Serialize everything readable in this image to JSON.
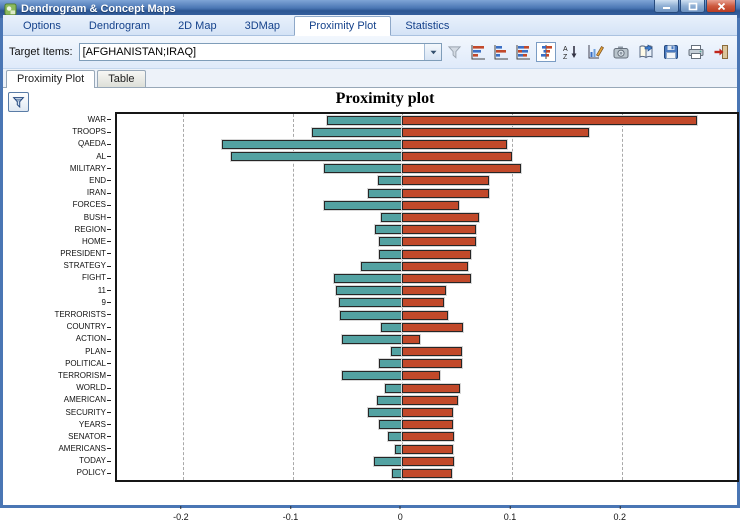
{
  "window": {
    "title": "Dendrogram & Concept Maps"
  },
  "tabs": [
    {
      "label": "Options"
    },
    {
      "label": "Dendrogram"
    },
    {
      "label": "2D Map"
    },
    {
      "label": "3DMap"
    },
    {
      "label": "Proximity Plot",
      "active": true
    },
    {
      "label": "Statistics"
    }
  ],
  "toolbar": {
    "target_items_label": "Target Items:",
    "target_items_value": "[AFGHANISTAN;IRAQ]",
    "left_icons": [
      "filter-funnel",
      "chart-bars-left",
      "chart-bars-sorted",
      "chart-bars-stacked",
      "chart-bars-diverging"
    ],
    "selected_chart_type": "chart-bars-diverging",
    "right_icons": [
      "sort-az",
      "chart-edit",
      "camera",
      "export-book",
      "save",
      "print",
      "exit"
    ]
  },
  "subtabs": [
    {
      "label": "Proximity Plot",
      "active": true
    },
    {
      "label": "Table"
    }
  ],
  "panel": {
    "filter_button_icon": "funnel"
  },
  "theme": {
    "titlebar_blue": "#3a66a4",
    "tab_text_blue": "#15428b",
    "negative_bar": "#53a2a2",
    "positive_bar": "#c2492a"
  },
  "chart_data": {
    "type": "bar",
    "orientation": "horizontal",
    "diverging": true,
    "title": "Proximity plot",
    "xlabel": "",
    "ylabel": "",
    "grid": "dashed-vertical",
    "xlim": [
      -0.26,
      0.305
    ],
    "xticks": [
      -0.2,
      -0.1,
      0,
      0.1,
      0.2
    ],
    "categories": [
      "WAR",
      "TROOPS",
      "QAEDA",
      "AL",
      "MILITARY",
      "END",
      "IRAN",
      "FORCES",
      "BUSH",
      "REGION",
      "HOME",
      "PRESIDENT",
      "STRATEGY",
      "FIGHT",
      "11",
      "9",
      "TERRORISTS",
      "COUNTRY",
      "ACTION",
      "PLAN",
      "POLITICAL",
      "TERRORISM",
      "WORLD",
      "AMERICAN",
      "SECURITY",
      "YEARS",
      "SENATOR",
      "AMERICANS",
      "TODAY",
      "POLICY"
    ],
    "series": [
      {
        "name": "negative-proximity",
        "color": "#53a2a2",
        "values": [
          -0.069,
          -0.082,
          -0.164,
          -0.156,
          -0.071,
          -0.022,
          -0.031,
          -0.071,
          -0.019,
          -0.025,
          -0.021,
          -0.021,
          -0.038,
          -0.062,
          -0.06,
          -0.058,
          -0.057,
          -0.019,
          -0.055,
          -0.01,
          -0.021,
          -0.055,
          -0.016,
          -0.023,
          -0.031,
          -0.021,
          -0.013,
          -0.007,
          -0.026,
          -0.009
        ]
      },
      {
        "name": "positive-proximity",
        "color": "#c2492a",
        "values": [
          0.269,
          0.17,
          0.095,
          0.1,
          0.108,
          0.079,
          0.079,
          0.052,
          0.07,
          0.067,
          0.067,
          0.063,
          0.06,
          0.063,
          0.04,
          0.038,
          0.042,
          0.055,
          0.016,
          0.054,
          0.054,
          0.034,
          0.053,
          0.051,
          0.046,
          0.046,
          0.047,
          0.046,
          0.047,
          0.045
        ]
      }
    ]
  }
}
